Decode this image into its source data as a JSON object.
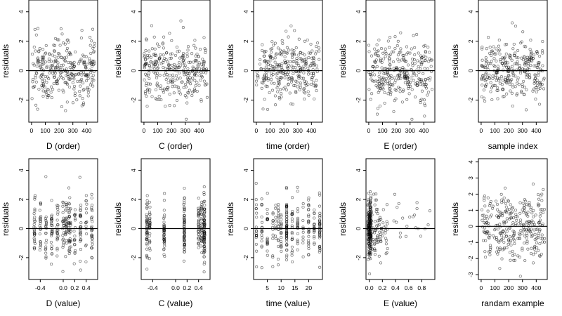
{
  "chart_data": [
    {
      "type": "scatter",
      "xlabel": "D (order)",
      "ylabel": "residuals",
      "xlim": [
        -20,
        480
      ],
      "ylim": [
        -3.5,
        4.8
      ],
      "x_ticks": [
        0,
        100,
        200,
        300,
        400
      ],
      "x_tick_labels": [
        "0",
        "100",
        "200",
        "300",
        "400"
      ],
      "y_ticks": [
        -2,
        0,
        2,
        4
      ],
      "y_tick_labels": [
        "-2",
        "0",
        "2",
        "4"
      ],
      "zero_line": 0,
      "x_mode": "order",
      "points": 300
    },
    {
      "type": "scatter",
      "xlabel": "C (order)",
      "ylabel": "residuals",
      "xlim": [
        -20,
        480
      ],
      "ylim": [
        -3.5,
        4.8
      ],
      "x_ticks": [
        0,
        100,
        200,
        300,
        400
      ],
      "x_tick_labels": [
        "0",
        "100",
        "200",
        "300",
        "400"
      ],
      "y_ticks": [
        -2,
        0,
        2,
        4
      ],
      "y_tick_labels": [
        "-2",
        "0",
        "2",
        "4"
      ],
      "zero_line": 0,
      "x_mode": "order",
      "points": 300
    },
    {
      "type": "scatter",
      "xlabel": "time (order)",
      "ylabel": "residuals",
      "xlim": [
        -20,
        480
      ],
      "ylim": [
        -3.5,
        4.8
      ],
      "x_ticks": [
        0,
        100,
        200,
        300,
        400
      ],
      "x_tick_labels": [
        "0",
        "100",
        "200",
        "300",
        "400"
      ],
      "y_ticks": [
        -2,
        0,
        2,
        4
      ],
      "y_tick_labels": [
        "-2",
        "0",
        "2",
        "4"
      ],
      "zero_line": 0,
      "x_mode": "order",
      "points": 300
    },
    {
      "type": "scatter",
      "xlabel": "E (order)",
      "ylabel": "residuals",
      "xlim": [
        -20,
        480
      ],
      "ylim": [
        -3.5,
        4.8
      ],
      "x_ticks": [
        0,
        100,
        200,
        300,
        400
      ],
      "x_tick_labels": [
        "0",
        "100",
        "200",
        "300",
        "400"
      ],
      "y_ticks": [
        -2,
        0,
        2,
        4
      ],
      "y_tick_labels": [
        "-2",
        "0",
        "2",
        "4"
      ],
      "zero_line": 0,
      "x_mode": "order",
      "points": 300
    },
    {
      "type": "scatter",
      "xlabel": "sample index",
      "ylabel": "residuals",
      "xlim": [
        -20,
        480
      ],
      "ylim": [
        -3.5,
        4.8
      ],
      "x_ticks": [
        0,
        100,
        200,
        300,
        400
      ],
      "x_tick_labels": [
        "0",
        "100",
        "200",
        "300",
        "400"
      ],
      "y_ticks": [
        -2,
        0,
        2,
        4
      ],
      "y_tick_labels": [
        "-2",
        "0",
        "2",
        "4"
      ],
      "zero_line": 0,
      "x_mode": "order",
      "points": 300
    },
    {
      "type": "scatter",
      "xlabel": "D (value)",
      "ylabel": "residuals",
      "xlim": [
        -0.6,
        0.6
      ],
      "ylim": [
        -3.5,
        4.8
      ],
      "x_ticks": [
        -0.4,
        0.0,
        0.2,
        0.4
      ],
      "x_tick_labels": [
        "-0.4",
        "0.0",
        "0.2",
        "0.4"
      ],
      "y_ticks": [
        -2,
        0,
        2,
        4
      ],
      "y_tick_labels": [
        "-2",
        "0",
        "2",
        "4"
      ],
      "zero_line": 0,
      "x_mode": "value_d",
      "points": 300
    },
    {
      "type": "scatter",
      "xlabel": "C (value)",
      "ylabel": "residuals",
      "xlim": [
        -0.6,
        0.6
      ],
      "ylim": [
        -3.5,
        4.8
      ],
      "x_ticks": [
        -0.4,
        0.0,
        0.2,
        0.4
      ],
      "x_tick_labels": [
        "-0.4",
        "0.0",
        "0.2",
        "0.4"
      ],
      "y_ticks": [
        -2,
        0,
        2,
        4
      ],
      "y_tick_labels": [
        "-2",
        "0",
        "2",
        "4"
      ],
      "zero_line": 0,
      "x_mode": "value_c",
      "points": 300
    },
    {
      "type": "scatter",
      "xlabel": "time (value)",
      "ylabel": "residuals",
      "xlim": [
        0,
        25
      ],
      "ylim": [
        -3.5,
        4.8
      ],
      "x_ticks": [
        5,
        10,
        15,
        20
      ],
      "x_tick_labels": [
        "5",
        "10",
        "15",
        "20"
      ],
      "y_ticks": [
        -2,
        0,
        2,
        4
      ],
      "y_tick_labels": [
        "-2",
        "0",
        "2",
        "4"
      ],
      "zero_line": 0,
      "x_mode": "value_time",
      "points": 300
    },
    {
      "type": "scatter",
      "xlabel": "E (value)",
      "ylabel": "residuals",
      "xlim": [
        -0.05,
        1.0
      ],
      "ylim": [
        -3.5,
        4.8
      ],
      "x_ticks": [
        0.0,
        0.2,
        0.4,
        0.6,
        0.8
      ],
      "x_tick_labels": [
        "0.0",
        "0.2",
        "0.4",
        "0.6",
        "0.8"
      ],
      "y_ticks": [
        -2,
        0,
        2,
        4
      ],
      "y_tick_labels": [
        "-2",
        "0",
        "2",
        "4"
      ],
      "zero_line": 0,
      "x_mode": "value_e",
      "points": 300
    },
    {
      "type": "scatter",
      "xlabel": "randam example",
      "ylabel": "residuals",
      "xlim": [
        -20,
        480
      ],
      "ylim": [
        -3.3,
        4.2
      ],
      "x_ticks": [
        0,
        100,
        200,
        300,
        400
      ],
      "x_tick_labels": [
        "0",
        "100",
        "200",
        "300",
        "400"
      ],
      "y_ticks": [
        -3,
        -2,
        -1,
        0,
        1,
        2,
        3,
        4
      ],
      "y_tick_labels": [
        "-3",
        "-2",
        "-1",
        "0",
        "1",
        "2",
        "3",
        "4"
      ],
      "zero_line": 0,
      "x_mode": "order",
      "points": 300
    }
  ]
}
